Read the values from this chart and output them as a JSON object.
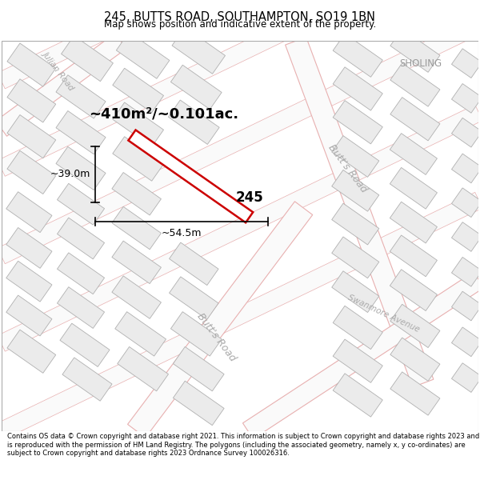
{
  "title": "245, BUTTS ROAD, SOUTHAMPTON, SO19 1BN",
  "subtitle": "Map shows position and indicative extent of the property.",
  "footer": "Contains OS data © Crown copyright and database right 2021. This information is subject to Crown copyright and database rights 2023 and is reproduced with the permission of HM Land Registry. The polygons (including the associated geometry, namely x, y co-ordinates) are subject to Crown copyright and database rights 2023 Ordnance Survey 100026316.",
  "area_text": "~410m²/~0.101ac.",
  "property_number": "245",
  "width_label": "~54.5m",
  "height_label": "~39.0m",
  "map_bg": "#fafafa",
  "bld_fill": "#ebebeb",
  "bld_ec": "#b0b0b0",
  "road_line_color": "#e8b0b0",
  "highlight_fill": "#ffffff",
  "highlight_stroke": "#cc0000",
  "road_label_butts_upper": "Butt's Road",
  "road_label_butts_lower": "Butt's Road",
  "road_label_swanmore": "Swanmore Avenue",
  "road_label_julian": "Julian Road",
  "label_sholing": "SHOLING",
  "text_color_road": "#aaaaaa",
  "text_color_sholing": "#999999"
}
